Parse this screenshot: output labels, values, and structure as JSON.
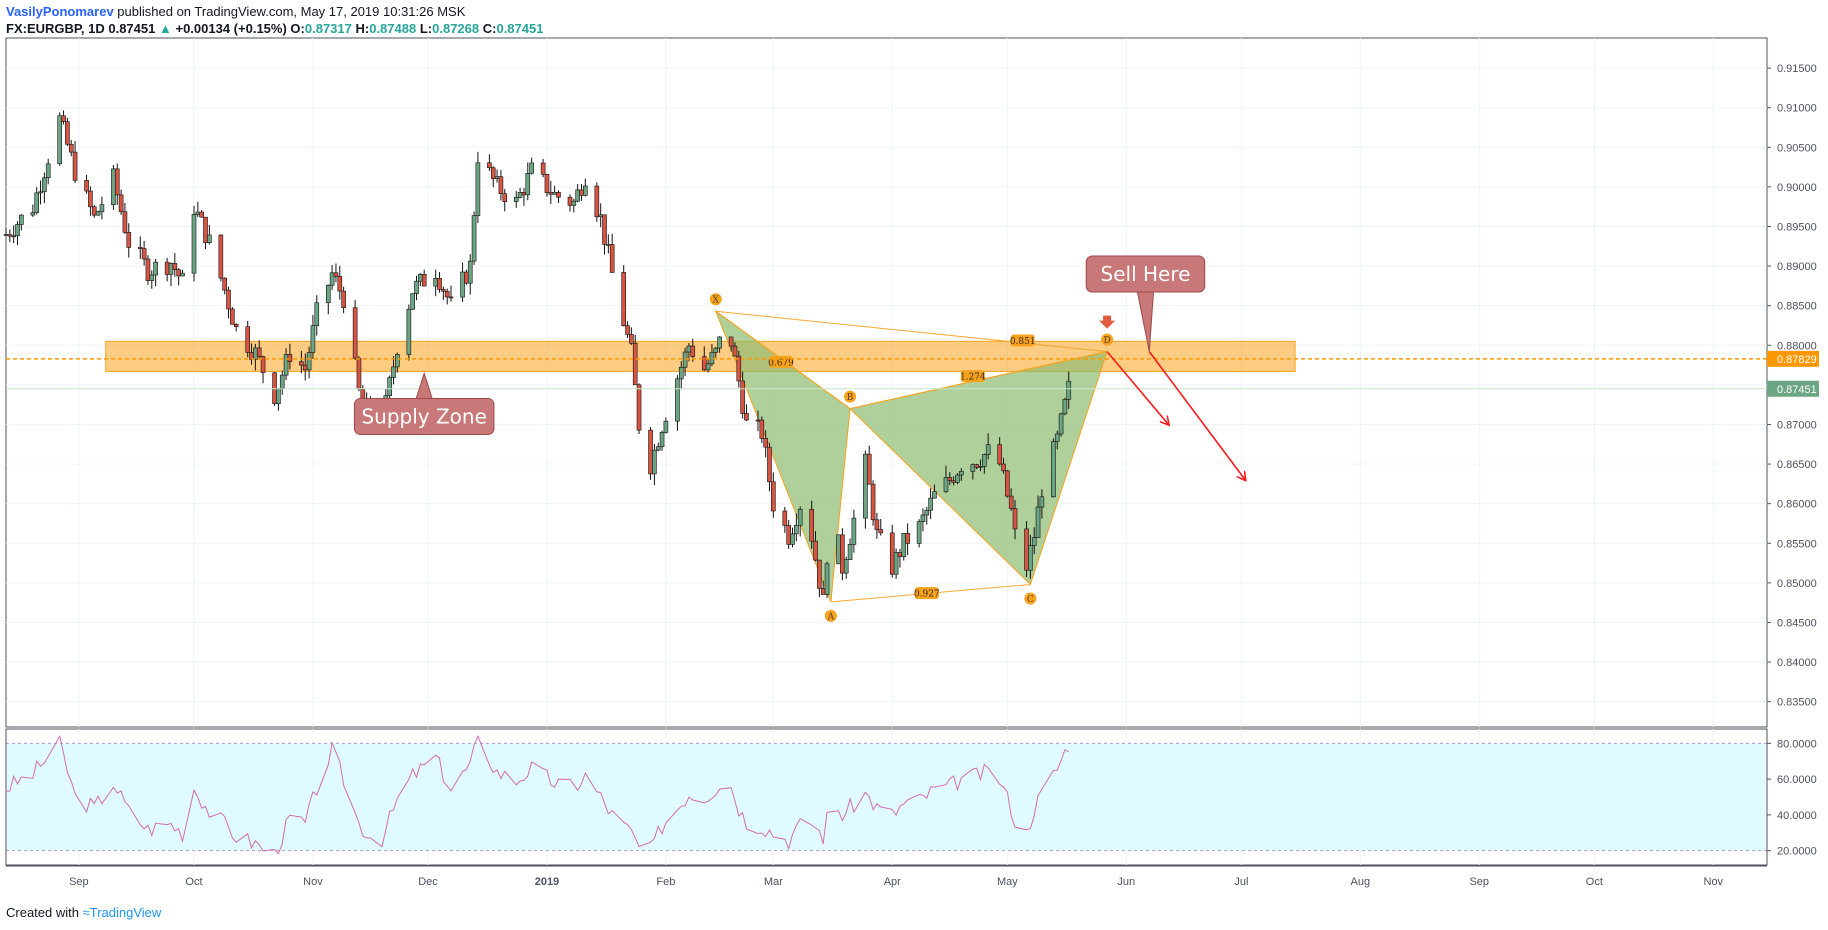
{
  "header": {
    "author": "VasilyPonomarev",
    "published_on": "published on TradingView.com, May 17, 2019 10:31:26 MSK",
    "symbol": "FX:EURGBP, 1D",
    "last": "0.87451",
    "arrow": "▲",
    "change": "+0.00134 (+0.15%)",
    "o_label": "O:",
    "o_value": "0.87317",
    "h_label": "H:",
    "h_value": "0.87488",
    "l_label": "L:",
    "l_value": "0.87268",
    "c_label": "C:",
    "c_value": "0.87451"
  },
  "footer": {
    "created_with": "Created with",
    "brand": "TradingView"
  },
  "colors": {
    "up": "#6ba583",
    "down": "#d75442",
    "zone": "#f7a21b",
    "pattern": "#8fbc70",
    "callout": "#c87878",
    "arrow": "#ff1a1a",
    "rsi_fill": "#e0fbff",
    "rsi_line": "#d36bb1"
  },
  "chart_data": {
    "type": "candlestick",
    "symbol": "FX:EURGBP",
    "timeframe": "1D",
    "y_ticks": [
      "0.91500",
      "0.91000",
      "0.90500",
      "0.90000",
      "0.89500",
      "0.89000",
      "0.88500",
      "0.88000",
      "0.87500",
      "0.87000",
      "0.86500",
      "0.86000",
      "0.85500",
      "0.85000",
      "0.84500",
      "0.84000",
      "0.83500"
    ],
    "y_range": [
      0.8318,
      0.9188
    ],
    "x_labels": [
      "Sep",
      "Oct",
      "Nov",
      "Dec",
      "2019",
      "Feb",
      "Mar",
      "Apr",
      "May",
      "Jun",
      "Jul",
      "Aug",
      "Sep",
      "Oct",
      "Nov"
    ],
    "x_label_dates": [
      "2018-09-01",
      "2018-10-01",
      "2018-11-01",
      "2018-12-01",
      "2019-01-01",
      "2019-02-01",
      "2019-03-01",
      "2019-04-01",
      "2019-05-01",
      "2019-06-01",
      "2019-07-01",
      "2019-08-01",
      "2019-09-01",
      "2019-10-01",
      "2019-11-01"
    ],
    "x_range": [
      "2018-08-13",
      "2019-11-15"
    ],
    "price_line": {
      "value": 0.87829,
      "label": "0.87829"
    },
    "last_price": {
      "value": 0.87451,
      "label": "0.87451"
    },
    "price_path": [
      [
        "2018-08-13",
        0.894
      ],
      [
        "2018-08-20",
        0.8975
      ],
      [
        "2018-08-27",
        0.9085
      ],
      [
        "2018-08-31",
        0.902
      ],
      [
        "2018-09-05",
        0.896
      ],
      [
        "2018-09-10",
        0.901
      ],
      [
        "2018-09-14",
        0.893
      ],
      [
        "2018-09-19",
        0.8895
      ],
      [
        "2018-09-25",
        0.8905
      ],
      [
        "2018-09-28",
        0.888
      ],
      [
        "2018-10-01",
        0.8975
      ],
      [
        "2018-10-05",
        0.893
      ],
      [
        "2018-10-09",
        0.887
      ],
      [
        "2018-10-12",
        0.882
      ],
      [
        "2018-10-17",
        0.879
      ],
      [
        "2018-10-22",
        0.8738
      ],
      [
        "2018-10-26",
        0.879
      ],
      [
        "2018-10-30",
        0.877
      ],
      [
        "2018-11-02",
        0.884
      ],
      [
        "2018-11-06",
        0.889
      ],
      [
        "2018-11-09",
        0.886
      ],
      [
        "2018-11-13",
        0.874
      ],
      [
        "2018-11-16",
        0.871
      ],
      [
        "2018-11-19",
        0.87
      ],
      [
        "2018-11-23",
        0.88
      ],
      [
        "2018-11-27",
        0.887
      ],
      [
        "2018-12-03",
        0.8895
      ],
      [
        "2018-12-07",
        0.885
      ],
      [
        "2018-12-12",
        0.89
      ],
      [
        "2018-12-14",
        0.904
      ],
      [
        "2018-12-19",
        0.9
      ],
      [
        "2018-12-24",
        0.898
      ],
      [
        "2018-12-28",
        0.902
      ],
      [
        "2019-01-03",
        0.899
      ],
      [
        "2019-01-08",
        0.898
      ],
      [
        "2019-01-11",
        0.9015
      ],
      [
        "2019-01-15",
        0.896
      ],
      [
        "2019-01-18",
        0.889
      ],
      [
        "2019-01-23",
        0.879
      ],
      [
        "2019-01-25",
        0.87
      ],
      [
        "2019-01-28",
        0.865
      ],
      [
        "2019-01-31",
        0.87
      ],
      [
        "2019-02-04",
        0.876
      ],
      [
        "2019-02-07",
        0.88
      ],
      [
        "2019-02-11",
        0.877
      ],
      [
        "2019-02-14",
        0.879
      ],
      [
        "2019-02-17",
        0.883
      ],
      [
        "2019-02-20",
        0.8755
      ],
      [
        "2019-02-22",
        0.87
      ],
      [
        "2019-02-26",
        0.869
      ],
      [
        "2019-03-01",
        0.86
      ],
      [
        "2019-03-05",
        0.856
      ],
      [
        "2019-03-08",
        0.86
      ],
      [
        "2019-03-11",
        0.856
      ],
      [
        "2019-03-14",
        0.8475
      ],
      [
        "2019-03-16",
        0.86
      ],
      [
        "2019-03-19",
        0.852
      ],
      [
        "2019-03-22",
        0.858
      ],
      [
        "2019-03-25",
        0.865
      ],
      [
        "2019-03-28",
        0.856
      ],
      [
        "2019-04-01",
        0.852
      ],
      [
        "2019-04-04",
        0.855
      ],
      [
        "2019-04-08",
        0.857
      ],
      [
        "2019-04-12",
        0.861
      ],
      [
        "2019-04-16",
        0.863
      ],
      [
        "2019-04-19",
        0.865
      ],
      [
        "2019-04-23",
        0.8655
      ],
      [
        "2019-04-26",
        0.8665
      ],
      [
        "2019-04-29",
        0.865
      ],
      [
        "2019-05-02",
        0.859
      ],
      [
        "2019-05-05",
        0.85
      ],
      [
        "2019-05-08",
        0.856
      ],
      [
        "2019-05-10",
        0.862
      ],
      [
        "2019-05-14",
        0.868
      ],
      [
        "2019-05-17",
        0.8745
      ]
    ],
    "rsi": {
      "ticks": [
        "80.0000",
        "60.0000",
        "40.0000",
        "20.0000"
      ],
      "y_range": [
        12,
        88
      ],
      "bands": [
        80,
        20
      ],
      "path": [
        [
          "2018-08-13",
          55
        ],
        [
          "2018-08-20",
          63
        ],
        [
          "2018-08-27",
          80
        ],
        [
          "2018-08-31",
          50
        ],
        [
          "2018-09-05",
          44
        ],
        [
          "2018-09-10",
          58
        ],
        [
          "2018-09-14",
          42
        ],
        [
          "2018-09-19",
          32
        ],
        [
          "2018-09-25",
          35
        ],
        [
          "2018-09-28",
          30
        ],
        [
          "2018-10-01",
          55
        ],
        [
          "2018-10-05",
          42
        ],
        [
          "2018-10-09",
          35
        ],
        [
          "2018-10-12",
          28
        ],
        [
          "2018-10-17",
          24
        ],
        [
          "2018-10-22",
          18
        ],
        [
          "2018-10-26",
          38
        ],
        [
          "2018-10-30",
          35
        ],
        [
          "2018-11-02",
          55
        ],
        [
          "2018-11-06",
          76
        ],
        [
          "2018-11-09",
          60
        ],
        [
          "2018-11-13",
          35
        ],
        [
          "2018-11-16",
          28
        ],
        [
          "2018-11-19",
          27
        ],
        [
          "2018-11-23",
          48
        ],
        [
          "2018-11-27",
          62
        ],
        [
          "2018-12-03",
          72
        ],
        [
          "2018-12-07",
          54
        ],
        [
          "2018-12-12",
          68
        ],
        [
          "2018-12-14",
          82
        ],
        [
          "2018-12-19",
          64
        ],
        [
          "2018-12-24",
          59
        ],
        [
          "2018-12-28",
          66
        ],
        [
          "2019-01-03",
          58
        ],
        [
          "2019-01-08",
          55
        ],
        [
          "2019-01-11",
          62
        ],
        [
          "2019-01-15",
          50
        ],
        [
          "2019-01-18",
          40
        ],
        [
          "2019-01-23",
          30
        ],
        [
          "2019-01-25",
          22
        ],
        [
          "2019-01-28",
          20
        ],
        [
          "2019-01-31",
          34
        ],
        [
          "2019-02-04",
          44
        ],
        [
          "2019-02-07",
          52
        ],
        [
          "2019-02-11",
          50
        ],
        [
          "2019-02-14",
          55
        ],
        [
          "2019-02-17",
          62
        ],
        [
          "2019-02-20",
          44
        ],
        [
          "2019-02-22",
          36
        ],
        [
          "2019-02-26",
          34
        ],
        [
          "2019-03-01",
          30
        ],
        [
          "2019-03-05",
          26
        ],
        [
          "2019-03-08",
          34
        ],
        [
          "2019-03-11",
          36
        ],
        [
          "2019-03-14",
          28
        ],
        [
          "2019-03-16",
          48
        ],
        [
          "2019-03-19",
          40
        ],
        [
          "2019-03-22",
          46
        ],
        [
          "2019-03-25",
          52
        ],
        [
          "2019-03-28",
          44
        ],
        [
          "2019-04-01",
          40
        ],
        [
          "2019-04-04",
          46
        ],
        [
          "2019-04-08",
          48
        ],
        [
          "2019-04-12",
          54
        ],
        [
          "2019-04-16",
          56
        ],
        [
          "2019-04-19",
          60
        ],
        [
          "2019-04-23",
          62
        ],
        [
          "2019-04-26",
          64
        ],
        [
          "2019-04-29",
          60
        ],
        [
          "2019-05-02",
          44
        ],
        [
          "2019-05-05",
          22
        ],
        [
          "2019-05-08",
          44
        ],
        [
          "2019-05-10",
          52
        ],
        [
          "2019-05-14",
          66
        ],
        [
          "2019-05-17",
          80
        ]
      ]
    },
    "supply_zone": {
      "from": "2018-09-08",
      "to": "2019-07-15",
      "low": 0.8767,
      "high": 0.8805
    },
    "harmonic_pattern": {
      "points": [
        {
          "label": "X",
          "date": "2019-02-14",
          "price": 0.8843
        },
        {
          "label": "A",
          "date": "2019-03-16",
          "price": 0.8476
        },
        {
          "label": "B",
          "date": "2019-03-21",
          "price": 0.872
        },
        {
          "label": "C",
          "date": "2019-05-07",
          "price": 0.8498
        },
        {
          "label": "D",
          "date": "2019-05-27",
          "price": 0.8792
        }
      ],
      "ratios": [
        {
          "label": "0.851",
          "from": "X",
          "to": "D",
          "date": "2019-05-05",
          "price": 0.8806
        },
        {
          "label": "0.679",
          "from": "X",
          "to": "B",
          "date": "2019-03-03",
          "price": 0.8779
        },
        {
          "label": "1.274",
          "from": "B",
          "to": "D",
          "date": "2019-04-22",
          "price": 0.8761
        },
        {
          "label": "0.927",
          "from": "A",
          "to": "C",
          "date": "2019-04-10",
          "price": 0.8487
        }
      ]
    },
    "annotations": [
      {
        "text": "Supply Zone",
        "date": "2018-11-30",
        "price": 0.871
      },
      {
        "text": "Sell Here",
        "date": "2019-06-06",
        "price": 0.889
      }
    ],
    "sell_arrows": [
      {
        "from": [
          "2019-05-27",
          0.8792
        ],
        "to": [
          "2019-06-12",
          0.87
        ]
      },
      {
        "from": [
          "2019-06-07",
          0.8792
        ],
        "to": [
          "2019-07-02",
          0.863
        ]
      }
    ]
  }
}
